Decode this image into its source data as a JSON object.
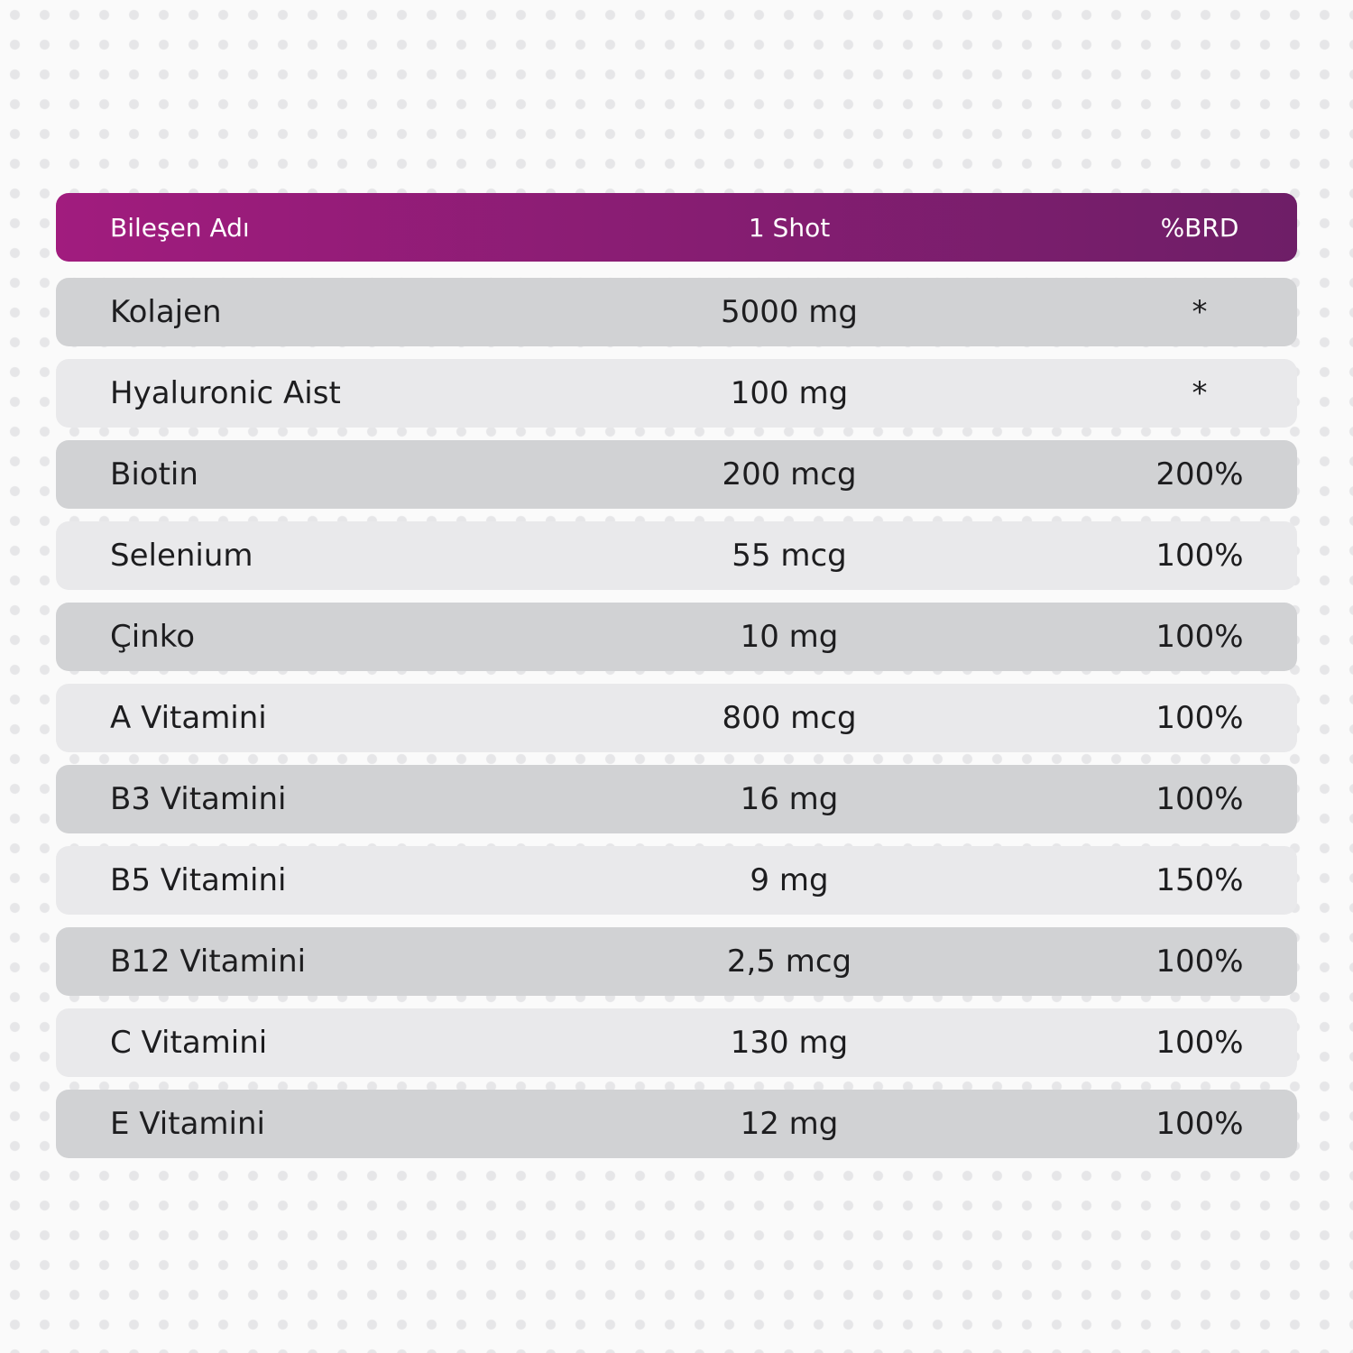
{
  "table": {
    "header": [
      "Bileşen Adı",
      "1 Shot",
      "%BRD"
    ],
    "rows": [
      [
        "Kolajen",
        "5000 mg",
        "*"
      ],
      [
        "Hyaluronic Aist",
        "100 mg",
        "*"
      ],
      [
        "Biotin",
        "200 mcg",
        "200%"
      ],
      [
        "Selenium",
        "55 mcg",
        "100%"
      ],
      [
        "Çinko",
        "10 mg",
        "100%"
      ],
      [
        "A Vitamini",
        "800 mcg",
        "100%"
      ],
      [
        "B3 Vitamini",
        "16 mg",
        "100%"
      ],
      [
        "B5 Vitamini",
        "9 mg",
        "150%"
      ],
      [
        "B12 Vitamini",
        "2,5 mcg",
        "100%"
      ],
      [
        "C Vitamini",
        "130 mg",
        "100%"
      ],
      [
        "E Vitamini",
        "12 mg",
        "100%"
      ]
    ]
  }
}
